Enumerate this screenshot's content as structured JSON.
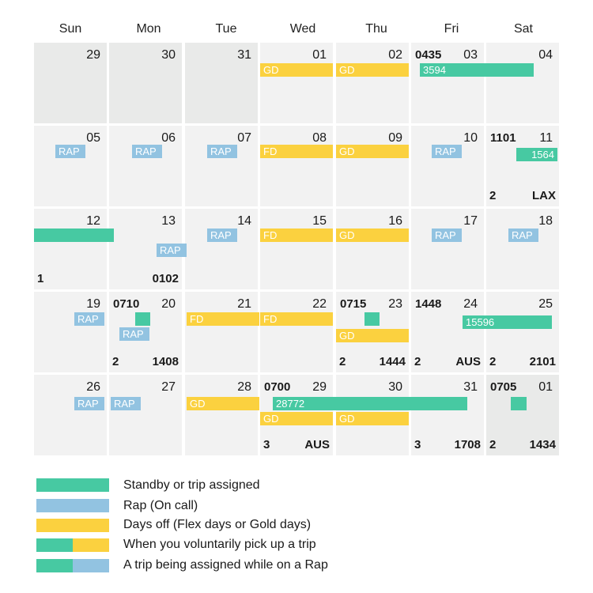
{
  "days_of_week": [
    "Sun",
    "Mon",
    "Tue",
    "Wed",
    "Thu",
    "Fri",
    "Sat"
  ],
  "colors": {
    "trip": "#47c9a2",
    "rap": "#92c3e1",
    "days_off": "#fbd13f",
    "cell": "#f2f2f2"
  },
  "weeks": [
    [
      "29",
      "30",
      "31",
      "01",
      "02",
      "03",
      "04"
    ],
    [
      "05",
      "06",
      "07",
      "08",
      "09",
      "10",
      "11"
    ],
    [
      "12",
      "13",
      "14",
      "15",
      "16",
      "17",
      "18"
    ],
    [
      "19",
      "20",
      "21",
      "22",
      "23",
      "24",
      "25"
    ],
    [
      "26",
      "27",
      "28",
      "29",
      "30",
      "31",
      "01"
    ]
  ],
  "times": {
    "w0_fri": "0435",
    "w1_sat": "1101",
    "w3_mon": "0710",
    "w3_thu": "0715",
    "w3_fri": "1448",
    "w4_wed": "0700",
    "w4_sat": "0705"
  },
  "bottom_left": {
    "w1_sat": "2",
    "w2_sun": "1",
    "w3_mon": "2",
    "w3_thu": "2",
    "w3_fri": "2",
    "w3_sat": "2",
    "w4_wed": "3",
    "w4_fri": "3",
    "w4_sat": "2"
  },
  "bottom_right": {
    "w1_sat": "LAX",
    "w2_mon": "0102",
    "w3_mon": "1408",
    "w3_thu": "1444",
    "w3_fri": "AUS",
    "w3_sat": "2101",
    "w4_wed": "AUS",
    "w4_fri": "1708",
    "w4_sat": "1434"
  },
  "bar_labels": {
    "rap": "RAP",
    "gd": "GD",
    "fd": "FD",
    "trip_3594": "3594",
    "trip_1564": "1564",
    "trip_15596": "15596",
    "trip_28772": "28772"
  },
  "legend": [
    {
      "label": "Standby or trip assigned"
    },
    {
      "label": "Rap (On call)"
    },
    {
      "label": "Days off (Flex days or Gold days)"
    },
    {
      "label": "When you voluntarily pick up a trip"
    },
    {
      "label": "A trip being assigned while on a Rap"
    }
  ]
}
